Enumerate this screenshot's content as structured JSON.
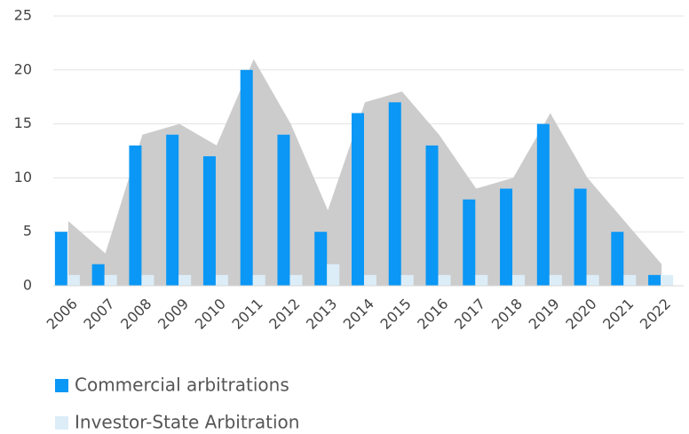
{
  "chart_data": {
    "type": "bar",
    "categories": [
      "2006",
      "2007",
      "2008",
      "2009",
      "2010",
      "2011",
      "2012",
      "2013",
      "2014",
      "2015",
      "2016",
      "2017",
      "2018",
      "2019",
      "2020",
      "2021",
      "2022"
    ],
    "series": [
      {
        "name": "Commercial arbitrations",
        "color": "#0a97f5",
        "values": [
          5,
          2,
          13,
          14,
          12,
          20,
          14,
          5,
          16,
          17,
          13,
          8,
          9,
          15,
          9,
          5,
          1
        ]
      },
      {
        "name": "Investor-State Arbitration",
        "color": "#dcedf8",
        "values": [
          1,
          1,
          1,
          1,
          1,
          1,
          1,
          2,
          1,
          1,
          1,
          1,
          1,
          1,
          1,
          1,
          1
        ]
      }
    ],
    "area_color": "#cccccc",
    "ylim": [
      0,
      25
    ],
    "yticks": [
      0,
      5,
      10,
      15,
      20,
      25
    ],
    "grid": true
  }
}
